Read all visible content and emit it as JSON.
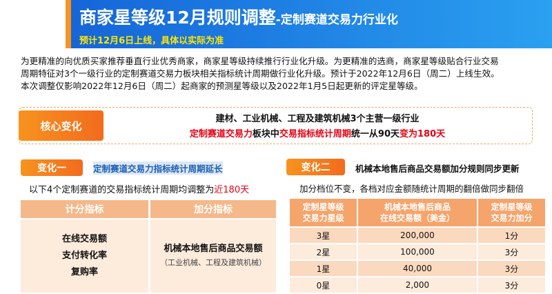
{
  "header": {
    "title": "商家星等级12月规则调整",
    "title_suffix": "-定制赛道交易力行业化",
    "subtitle": "预计12月6日上线，具体以实际为准"
  },
  "intro": [
    "为更精准的向优质买家推荐垂直行业优秀商家，商家星等级持续推行行业化升级。为更精准的选商，商家星等级贴合行业交易",
    "周期特征对3个一级行业的定制赛道交易力板块相关指标统计周期做行业化升级。预计于2022年12月6日（周二）上线生效。",
    "本次调整仅影响2022年12月6日（周二）起商家的预测星等级以及2022年1月5日起更新的评定星等级。"
  ],
  "core": {
    "label": "核心变化",
    "line1": "建材、工业机械、工程及建筑机械3个主营一级行业",
    "line2": [
      "定制赛道交易力",
      "板块中",
      "交易指标统计周期",
      "统一从90天",
      "变为180天"
    ]
  },
  "change1": {
    "label": "变化一",
    "title": "定制赛道交易力指标统计周期延长",
    "desc": [
      "以下4个定制赛道的交易指标统计周期均调整为",
      "近180天"
    ],
    "table": {
      "headers": [
        "计分指标",
        "加分指标"
      ],
      "left": [
        "在线交易额",
        "支付转化率",
        "复购率"
      ],
      "right": "机械本地售后商品交易额",
      "right_note": "（工业机械、工程及建筑机械）"
    }
  },
  "change2": {
    "label": "变化二",
    "title": "机械本地售后商品交易额加分规则同步更新",
    "desc": "加分档位不变，各档对应金额随统计周期的翻倍做同步翻倍",
    "table": {
      "headers": [
        [
          "定制星等级",
          "交易力星级"
        ],
        [
          "机械本地售后商品",
          "在线交易额（美金）"
        ],
        [
          "定制星等级",
          "交易力加分"
        ]
      ],
      "rows": [
        [
          "3星",
          "200,000",
          "1分"
        ],
        [
          "2星",
          "100,000",
          "3分"
        ],
        [
          "1星",
          "40,000",
          "3分"
        ],
        [
          "0星",
          "2,000",
          "3分"
        ]
      ]
    }
  }
}
